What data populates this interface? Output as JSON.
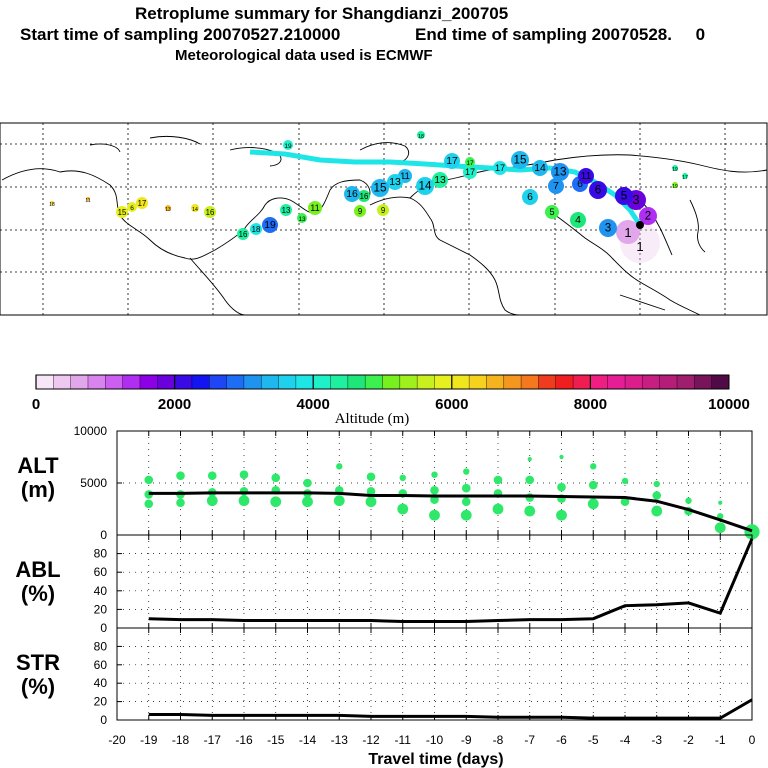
{
  "header": {
    "title": "Retroplume summary for Shangdianzi_200705",
    "sampling_start_label": "Start time of sampling 20070527.210000",
    "sampling_end_label": "End time of sampling 20070528.     0",
    "met_label": "Meteorological data used is ECMWF"
  },
  "colorbar": {
    "tick_labels": [
      "0",
      "2000",
      "4000",
      "6000",
      "8000",
      "10000"
    ],
    "label": "Altitude (m)",
    "colors": [
      "#f7e6f7",
      "#efc8ef",
      "#e2a6ea",
      "#d983ee",
      "#cc5ef0",
      "#b02ef2",
      "#8c00e6",
      "#6a00dc",
      "#3a0ae6",
      "#1414f0",
      "#1e46f5",
      "#1e6ef5",
      "#1e94f0",
      "#1eb8ee",
      "#1ed2ee",
      "#1ee6e6",
      "#1ef0c8",
      "#1ef0a0",
      "#1ee678",
      "#3cf050",
      "#78f01e",
      "#a0f01e",
      "#c8f01e",
      "#e6f01e",
      "#f0e61e",
      "#f5d21e",
      "#f5b41e",
      "#f5961e",
      "#f5781e",
      "#f03c1e",
      "#f01e1e",
      "#f01e50",
      "#f01e82",
      "#e61e96",
      "#dc1e8c",
      "#c81e82",
      "#b41e78",
      "#a01e6e",
      "#78145a",
      "#500a46"
    ]
  },
  "map": {
    "day_labels": [
      "1",
      "2",
      "3",
      "4",
      "5",
      "6",
      "7",
      "8",
      "9",
      "10",
      "11",
      "12",
      "13",
      "14",
      "15",
      "16",
      "17",
      "18",
      "19"
    ]
  },
  "chart_data": [
    {
      "type": "scatter",
      "panel": "ALT",
      "title": "ALT",
      "ylabel": "(m)",
      "xlabel": "Travel time (days)",
      "xlim": [
        -20,
        0
      ],
      "ylim": [
        0,
        10000
      ],
      "x_ticks": [
        -20,
        -19,
        -18,
        -17,
        -16,
        -15,
        -14,
        -13,
        -12,
        -11,
        -10,
        -9,
        -8,
        -7,
        -6,
        -5,
        -4,
        -3,
        -2,
        -1,
        0
      ],
      "y_ticks": [
        0,
        5000,
        10000
      ],
      "mean_line": {
        "x": [
          -19,
          -18,
          -17,
          -16,
          -15,
          -14,
          -13,
          -12,
          -11,
          -10,
          -9,
          -8,
          -7,
          -6,
          -5,
          -4,
          -3,
          -2,
          -1,
          0
        ],
        "y": [
          4000,
          4000,
          4050,
          4050,
          4050,
          4050,
          4000,
          3800,
          3800,
          3750,
          3750,
          3750,
          3750,
          3700,
          3650,
          3600,
          3250,
          2450,
          1450,
          400
        ]
      },
      "cluster_points": [
        {
          "x": -19,
          "y": 5300,
          "size": 3
        },
        {
          "x": -19,
          "y": 3900,
          "size": 3
        },
        {
          "x": -19,
          "y": 3000,
          "size": 3
        },
        {
          "x": -18,
          "y": 5700,
          "size": 3
        },
        {
          "x": -18,
          "y": 3900,
          "size": 3
        },
        {
          "x": -18,
          "y": 3100,
          "size": 3
        },
        {
          "x": -17,
          "y": 5700,
          "size": 3
        },
        {
          "x": -17,
          "y": 4100,
          "size": 3
        },
        {
          "x": -17,
          "y": 3300,
          "size": 4
        },
        {
          "x": -16,
          "y": 5800,
          "size": 3
        },
        {
          "x": -16,
          "y": 4200,
          "size": 3
        },
        {
          "x": -16,
          "y": 3300,
          "size": 4
        },
        {
          "x": -15,
          "y": 5500,
          "size": 3
        },
        {
          "x": -15,
          "y": 4300,
          "size": 3
        },
        {
          "x": -15,
          "y": 3200,
          "size": 4
        },
        {
          "x": -14,
          "y": 5000,
          "size": 3
        },
        {
          "x": -14,
          "y": 4000,
          "size": 3
        },
        {
          "x": -14,
          "y": 3200,
          "size": 4
        },
        {
          "x": -13,
          "y": 6600,
          "size": 2
        },
        {
          "x": -13,
          "y": 4300,
          "size": 3
        },
        {
          "x": -13,
          "y": 3300,
          "size": 4
        },
        {
          "x": -12,
          "y": 5600,
          "size": 3
        },
        {
          "x": -12,
          "y": 4200,
          "size": 3
        },
        {
          "x": -12,
          "y": 3200,
          "size": 4
        },
        {
          "x": -11,
          "y": 5500,
          "size": 2
        },
        {
          "x": -11,
          "y": 4000,
          "size": 3
        },
        {
          "x": -11,
          "y": 2500,
          "size": 4
        },
        {
          "x": -10,
          "y": 5800,
          "size": 2
        },
        {
          "x": -10,
          "y": 4300,
          "size": 3
        },
        {
          "x": -10,
          "y": 3400,
          "size": 3
        },
        {
          "x": -10,
          "y": 1900,
          "size": 4
        },
        {
          "x": -9,
          "y": 6100,
          "size": 2
        },
        {
          "x": -9,
          "y": 4500,
          "size": 3
        },
        {
          "x": -9,
          "y": 3200,
          "size": 3
        },
        {
          "x": -9,
          "y": 1900,
          "size": 4
        },
        {
          "x": -8,
          "y": 5300,
          "size": 3
        },
        {
          "x": -8,
          "y": 4000,
          "size": 3
        },
        {
          "x": -8,
          "y": 2500,
          "size": 4
        },
        {
          "x": -7,
          "y": 7300,
          "size": 1
        },
        {
          "x": -7,
          "y": 5300,
          "size": 3
        },
        {
          "x": -7,
          "y": 3600,
          "size": 3
        },
        {
          "x": -7,
          "y": 2300,
          "size": 4
        },
        {
          "x": -6,
          "y": 7500,
          "size": 1
        },
        {
          "x": -6,
          "y": 4600,
          "size": 3
        },
        {
          "x": -6,
          "y": 3500,
          "size": 3
        },
        {
          "x": -6,
          "y": 1900,
          "size": 4
        },
        {
          "x": -5,
          "y": 6600,
          "size": 2
        },
        {
          "x": -5,
          "y": 4800,
          "size": 3
        },
        {
          "x": -5,
          "y": 3000,
          "size": 4
        },
        {
          "x": -4,
          "y": 5200,
          "size": 2
        },
        {
          "x": -4,
          "y": 3200,
          "size": 3
        },
        {
          "x": -3,
          "y": 4900,
          "size": 2
        },
        {
          "x": -3,
          "y": 3800,
          "size": 3
        },
        {
          "x": -3,
          "y": 2300,
          "size": 4
        },
        {
          "x": -2,
          "y": 3300,
          "size": 2
        },
        {
          "x": -2,
          "y": 2300,
          "size": 3
        },
        {
          "x": -1,
          "y": 3100,
          "size": 1
        },
        {
          "x": -1,
          "y": 1800,
          "size": 2
        },
        {
          "x": -1,
          "y": 700,
          "size": 4
        },
        {
          "x": 0,
          "y": 300,
          "size": 6
        }
      ]
    },
    {
      "type": "line",
      "panel": "ABL",
      "title": "ABL",
      "ylabel": "(%)",
      "xlim": [
        -20,
        0
      ],
      "ylim": [
        0,
        100
      ],
      "y_ticks": [
        0,
        20,
        40,
        60,
        80
      ],
      "x": [
        -19,
        -18,
        -17,
        -16,
        -15,
        -14,
        -13,
        -12,
        -11,
        -10,
        -9,
        -8,
        -7,
        -6,
        -5,
        -4,
        -3,
        -2,
        -1,
        0
      ],
      "y": [
        10,
        9,
        9,
        8,
        8,
        8,
        8,
        8,
        7,
        7,
        7,
        8,
        9,
        9,
        10,
        24,
        25,
        27,
        16,
        96
      ]
    },
    {
      "type": "line",
      "panel": "STR",
      "title": "STR",
      "ylabel": "(%)",
      "xlim": [
        -20,
        0
      ],
      "ylim": [
        0,
        100
      ],
      "y_ticks": [
        0,
        20,
        40,
        60,
        80
      ],
      "x_tick_labels": [
        "-20",
        "-19",
        "-18",
        "-17",
        "-16",
        "-15",
        "-14",
        "-13",
        "-12",
        "-11",
        "-10",
        "-9",
        "-8",
        "-7",
        "-6",
        "-5",
        "-4",
        "-3",
        "-2",
        "-1",
        "0"
      ],
      "x": [
        -19,
        -18,
        -17,
        -16,
        -15,
        -14,
        -13,
        -12,
        -11,
        -10,
        -9,
        -8,
        -7,
        -6,
        -5,
        -4,
        -3,
        -2,
        -1,
        0
      ],
      "y": [
        6,
        6,
        5,
        5,
        5,
        5,
        5,
        4,
        4,
        4,
        4,
        3,
        3,
        3,
        2,
        2,
        2,
        2,
        2,
        22
      ]
    }
  ]
}
